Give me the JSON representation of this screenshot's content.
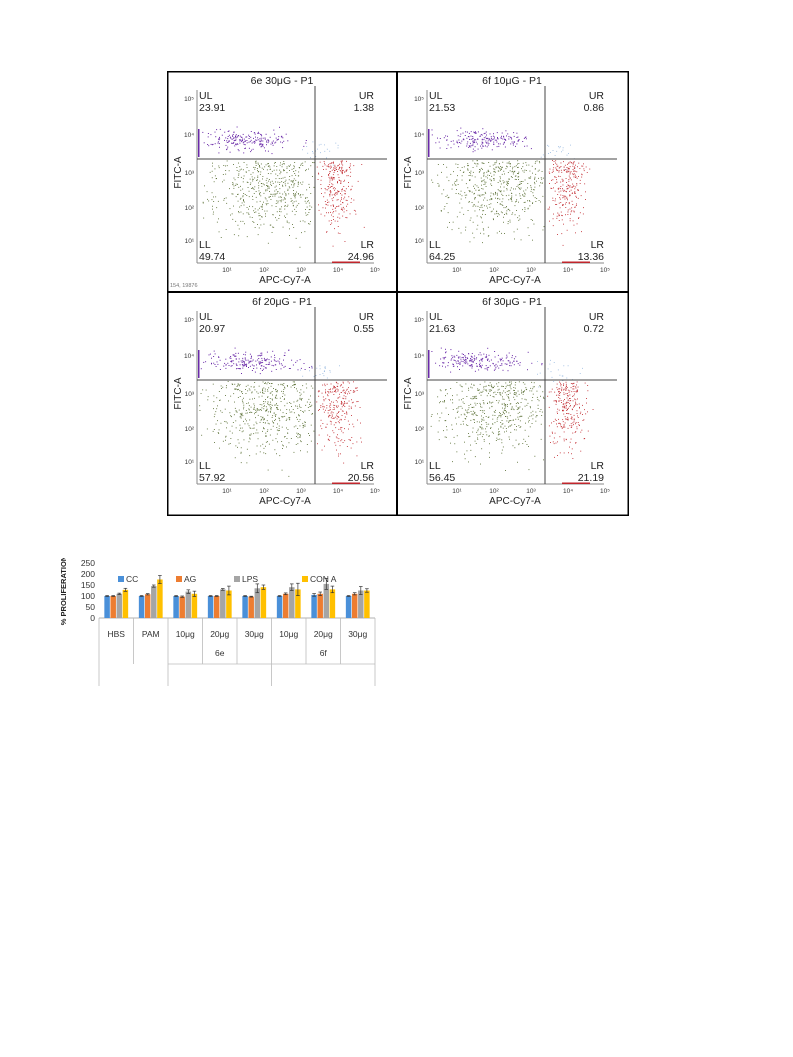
{
  "flow_panels": [
    {
      "title": "6e 30μG - P1",
      "quadrants": {
        "UL": "23.91",
        "UR": "1.38",
        "LL": "49.74",
        "LR": "24.96"
      },
      "footnote": "154, 19876"
    },
    {
      "title": "6f 10μG - P1",
      "quadrants": {
        "UL": "21.53",
        "UR": "0.86",
        "LL": "64.25",
        "LR": "13.36"
      }
    },
    {
      "title": "6f 20μG - P1",
      "quadrants": {
        "UL": "20.97",
        "UR": "0.55",
        "LL": "57.92",
        "LR": "20.56"
      }
    },
    {
      "title": "6f 30μG - P1",
      "quadrants": {
        "UL": "21.63",
        "UR": "0.72",
        "LL": "56.45",
        "LR": "21.19"
      }
    }
  ],
  "flow_axes": {
    "xlabel": "APC-Cy7-A",
    "ylabel": "FITC-A",
    "x_ticks": [
      "10¹",
      "10²",
      "10³",
      "10⁴",
      "10⁵"
    ],
    "y_ticks": [
      "10⁵",
      "10⁴",
      "10³",
      "10²",
      "10¹"
    ],
    "quadrant_names": {
      "UL": "UL",
      "UR": "UR",
      "LL": "LL",
      "LR": "LR"
    },
    "colors": {
      "UL": "#6a2aa8",
      "UR": "#7fa8d8",
      "LL": "#556b2f",
      "LR": "#c0262c"
    }
  },
  "chart_data": {
    "type": "bar",
    "title": "",
    "ylabel": "% PROLIFERATION",
    "xlabel": "",
    "ylim": [
      0,
      250
    ],
    "yticks": [
      0,
      50,
      100,
      150,
      200,
      250
    ],
    "categories": [
      "HBS",
      "PAM",
      "10μg",
      "20μg",
      "30μg",
      "10μg",
      "20μg",
      "30μg"
    ],
    "groups": [
      {
        "label": "6e",
        "from": 2,
        "to": 4
      },
      {
        "label": "6f",
        "from": 5,
        "to": 7
      }
    ],
    "legend_position": "top",
    "series": [
      {
        "name": "CC",
        "color": "#4a90d9",
        "values": [
          100,
          100,
          100,
          100,
          100,
          100,
          105,
          100
        ],
        "errors": [
          2,
          2,
          2,
          2,
          2,
          2,
          6,
          2
        ]
      },
      {
        "name": "AG",
        "color": "#ed7d31",
        "values": [
          100,
          108,
          97,
          100,
          97,
          110,
          110,
          110
        ],
        "errors": [
          2,
          3,
          3,
          2,
          2,
          4,
          8,
          5
        ]
      },
      {
        "name": "LPS",
        "color": "#a5a5a5",
        "values": [
          110,
          145,
          120,
          130,
          135,
          140,
          155,
          125
        ],
        "errors": [
          3,
          5,
          8,
          4,
          20,
          15,
          25,
          18
        ]
      },
      {
        "name": "CON A",
        "color": "#ffc000",
        "values": [
          128,
          175,
          110,
          125,
          140,
          130,
          130,
          125
        ],
        "errors": [
          7,
          18,
          12,
          20,
          10,
          28,
          15,
          8
        ]
      }
    ]
  }
}
